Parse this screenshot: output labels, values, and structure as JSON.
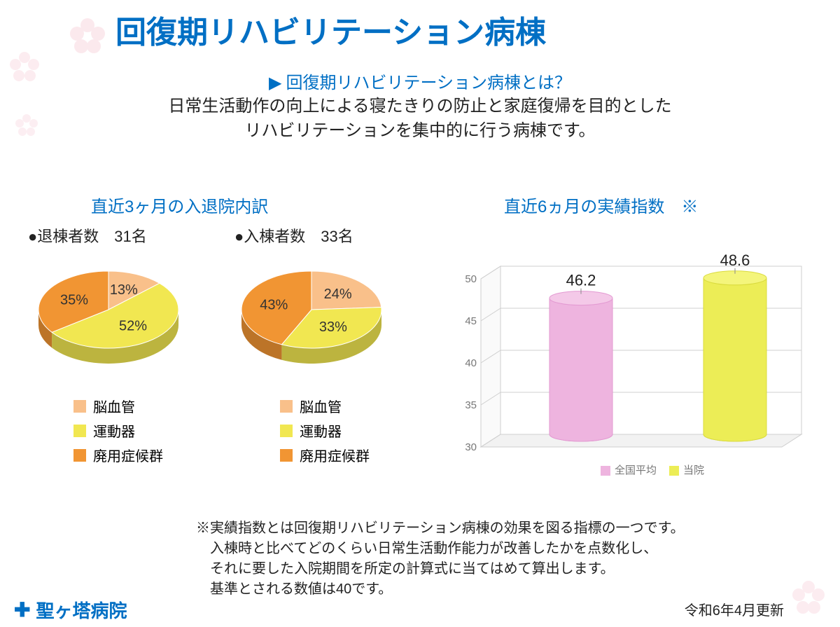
{
  "page_title": "回復期リハビリテーション病棟",
  "subheading": "回復期リハビリテーション病棟とは？",
  "description_line1": "日常生活動作の向上による寝たきりの防止と家庭復帰を目的とした",
  "description_line2": "リハビリテーションを集中的に行う病棟です。",
  "pie_section_title": "直近3ヶ月の入退院内訳",
  "discharge": {
    "label": "●退棟者数　31名",
    "type": "pie",
    "slices": [
      {
        "name": "脳血管",
        "pct": 13,
        "color": "#f9c08a",
        "label": "13%"
      },
      {
        "name": "運動器",
        "pct": 52,
        "color": "#f1e751",
        "label": "52%"
      },
      {
        "name": "廃用症候群",
        "pct": 35,
        "color": "#f19533",
        "label": "35%"
      }
    ]
  },
  "admission": {
    "label": "●入棟者数　33名",
    "type": "pie",
    "slices": [
      {
        "name": "脳血管",
        "pct": 24,
        "color": "#f9c08a",
        "label": "24%"
      },
      {
        "name": "運動器",
        "pct": 33,
        "color": "#f1e751",
        "label": "33%"
      },
      {
        "name": "廃用症候群",
        "pct": 43,
        "color": "#f19533",
        "label": "43%"
      }
    ]
  },
  "pie_legend": [
    {
      "label": "脳血管",
      "color": "#f9c08a"
    },
    {
      "label": "運動器",
      "color": "#f1e751"
    },
    {
      "label": "廃用症候群",
      "color": "#f19533"
    }
  ],
  "bar_section_title": "直近6ヵ月の実績指数　※",
  "bar_chart": {
    "type": "bar",
    "ylim": [
      30,
      50
    ],
    "ytick_step": 5,
    "grid_color": "#cfcfcf",
    "axis_color": "#888888",
    "label_color": "#777777",
    "label_fontsize": 15,
    "value_fontsize": 22,
    "value_color": "#222222",
    "bars": [
      {
        "name": "全国平均",
        "value": 46.2,
        "fill": "#eeb4df",
        "side_fill": "#e39ad2",
        "top_fill": "#f4c9e8",
        "value_label": "46.2"
      },
      {
        "name": "当院",
        "value": 48.6,
        "fill": "#eced56",
        "side_fill": "#dadb3e",
        "top_fill": "#f4f57b",
        "value_label": "48.6"
      }
    ],
    "legend": [
      {
        "label": "全国平均",
        "color": "#eeb4df"
      },
      {
        "label": "当院",
        "color": "#eced56"
      }
    ]
  },
  "footnote_l1": "※実績指数とは回復期リハビリテーション病棟の効果を図る指標の一つです。",
  "footnote_l2": "　入棟時と比べてどのくらい日常生活動作能力が改善したかを点数化し、",
  "footnote_l3": "　それに要した入院期間を所定の計算式に当てはめて算出します。",
  "footnote_l4": "　基準とされる数値は40です。",
  "update_date": "令和6年4月更新",
  "hospital_name": "聖ヶ塔病院"
}
